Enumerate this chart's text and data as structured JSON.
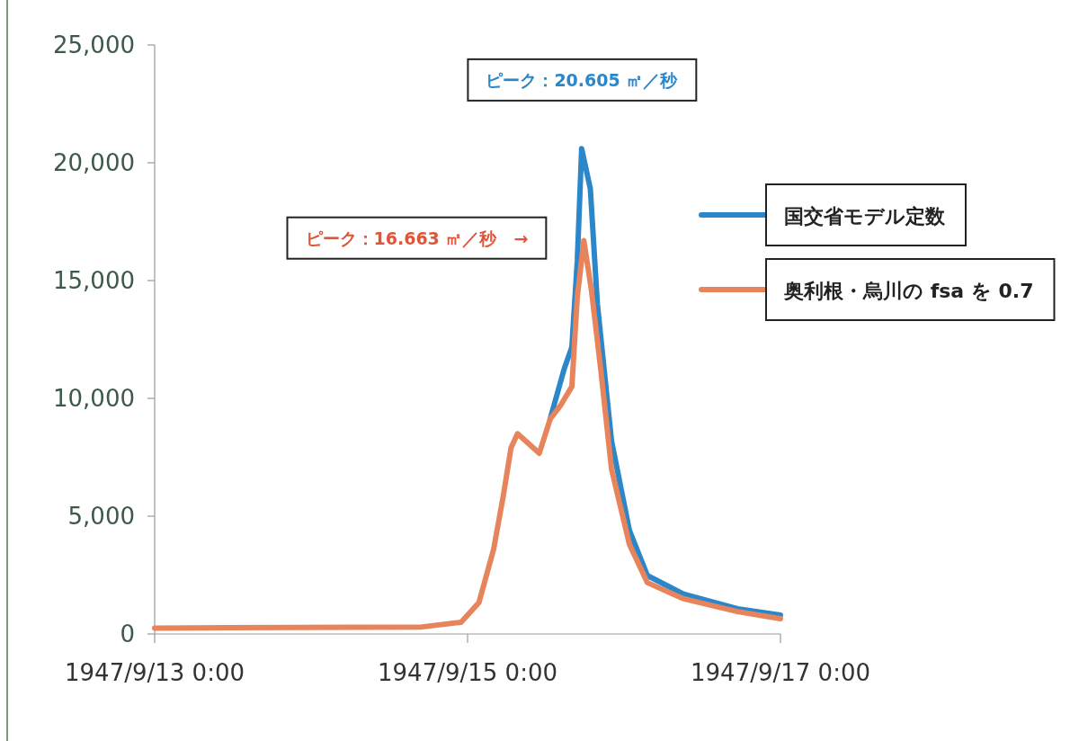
{
  "chart_data": {
    "type": "line",
    "xlim": [
      "1947-09-13T00:00",
      "1947-09-17T00:00"
    ],
    "xticks": [
      {
        "value": "1947-09-13T00:00",
        "label": "1947/9/13 0:00"
      },
      {
        "value": "1947-09-15T00:00",
        "label": "1947/9/15 0:00"
      },
      {
        "value": "1947-09-17T00:00",
        "label": "1947/9/17 0:00"
      }
    ],
    "ylim": [
      0,
      25000
    ],
    "yticks": [
      {
        "value": 0,
        "label": "0"
      },
      {
        "value": 5000,
        "label": "5,000"
      },
      {
        "value": 10000,
        "label": "10,000"
      },
      {
        "value": 15000,
        "label": "15,000"
      },
      {
        "value": 20000,
        "label": "20,000"
      },
      {
        "value": 25000,
        "label": "25,000"
      }
    ],
    "grid": false,
    "legend": "right",
    "series": [
      {
        "name": "国交省モデル定数",
        "color": "#2b87c9",
        "x": [
          "1947-09-15T12:40",
          "1947-09-15T14:50",
          "1947-09-15T16:00",
          "1947-09-15T16:50",
          "1947-09-15T17:30",
          "1947-09-15T18:50",
          "1947-09-15T19:55",
          "1947-09-15T22:05",
          "1947-09-16T00:50",
          "1947-09-16T03:35",
          "1947-09-16T09:05",
          "1947-09-16T17:25",
          "1947-09-17T00:00"
        ],
        "values": [
          9120,
          11260,
          12180,
          15840,
          20600,
          18900,
          14000,
          8200,
          4390,
          2480,
          1700,
          1070,
          800
        ]
      },
      {
        "name": "奥利根・烏川の fsa を 0.7",
        "color": "#e8845c",
        "x": [
          "1947-09-13T00:00",
          "1947-09-14T17:00",
          "1947-09-14T23:00",
          "1947-09-15T01:45",
          "1947-09-15T04:00",
          "1947-09-15T05:30",
          "1947-09-15T06:40",
          "1947-09-15T07:40",
          "1947-09-15T11:00",
          "1947-09-15T12:40",
          "1947-09-15T14:20",
          "1947-09-15T16:00",
          "1947-09-15T16:50",
          "1947-09-15T17:50",
          "1947-09-15T19:00",
          "1947-09-15T20:25",
          "1947-09-15T22:05",
          "1947-09-16T00:50",
          "1947-09-16T03:35",
          "1947-09-16T09:05",
          "1947-09-16T17:25",
          "1947-09-17T00:00"
        ],
        "values": [
          250,
          300,
          500,
          1340,
          3600,
          5900,
          7900,
          8500,
          7670,
          9120,
          9730,
          10500,
          14300,
          16700,
          14600,
          11260,
          7000,
          3800,
          2180,
          1500,
          950,
          650
        ]
      }
    ],
    "annotations": [
      "ピーク：20.605 ㎡／秒",
      "ピーク：16.663 ㎡／秒　→"
    ]
  }
}
